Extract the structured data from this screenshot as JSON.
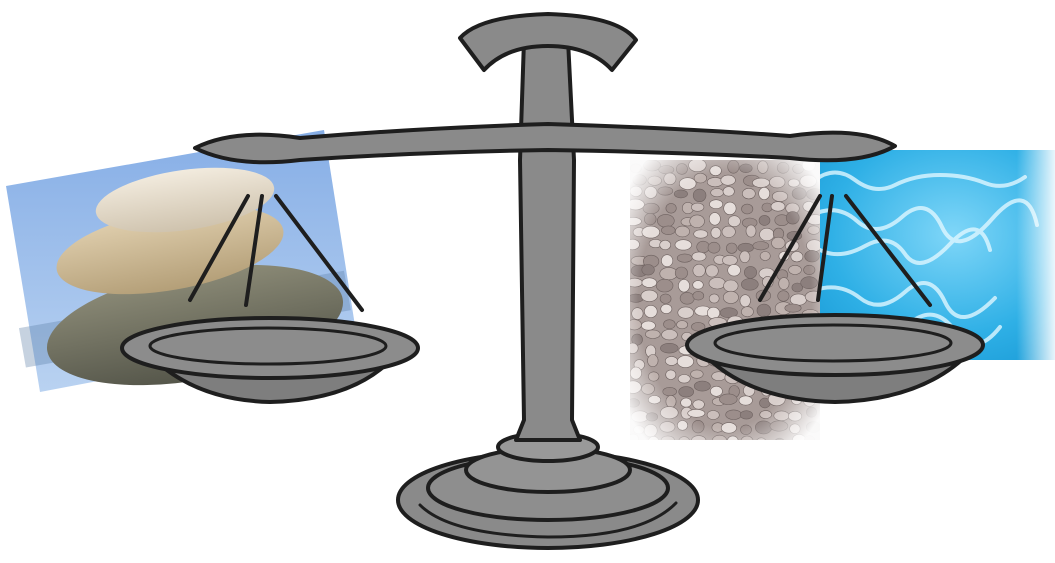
{
  "scene": {
    "subject": "balance-scale",
    "left_pan_object": "stacked-stones",
    "right_pan_objects": [
      "pebbles",
      "water"
    ],
    "tilt": "level"
  },
  "colors": {
    "background": "#ffffff",
    "scale_fill": "#8a8a8a",
    "scale_outline": "#1e1e1e",
    "sky_blue": "#9cc0ec",
    "stone_light": "#e7ddcb",
    "stone_mid": "#c8b693",
    "stone_dark": "#6f6d5c",
    "pebble_base": "#b9aca8",
    "water_light": "#bfeaff",
    "water_mid": "#36b7ea",
    "water_dark": "#0b8fd0"
  }
}
